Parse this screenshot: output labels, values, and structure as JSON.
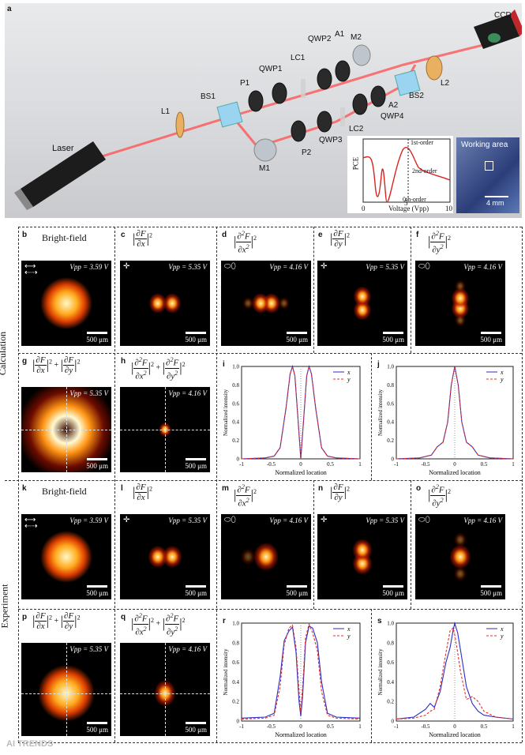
{
  "figure": {
    "section_labels": {
      "calculation": "Calculation",
      "experiment": "Experiment"
    },
    "setup": {
      "panel_label": "a",
      "components": [
        "Laser",
        "L1",
        "BS1",
        "P1",
        "QWP1",
        "LC1",
        "QWP2",
        "A1",
        "M2",
        "BS2",
        "L2",
        "CCD",
        "M1",
        "P2",
        "QWP3",
        "LC2",
        "QWP4",
        "A2"
      ],
      "inset_pce": {
        "ylabel": "PCE",
        "xlabel": "Voltage (Vpp)",
        "xticks": [
          "0",
          "5",
          "10"
        ],
        "labels": [
          "1st-order",
          "2nd-order",
          "0th-order"
        ]
      },
      "inset_photo": {
        "title": "Working area",
        "scale": "4 mm"
      }
    },
    "panels": [
      {
        "label": "b",
        "title": "Bright-field",
        "vpp": "3.59 V",
        "scale": "500 μm"
      },
      {
        "label": "c",
        "title": "|∂F/∂x|²",
        "vpp": "5.35 V",
        "scale": "500 μm"
      },
      {
        "label": "d",
        "title": "|∂²F/∂x²|²",
        "vpp": "4.16 V",
        "scale": "500 μm"
      },
      {
        "label": "e",
        "title": "|∂F/∂y|²",
        "vpp": "5.35 V",
        "scale": "500 μm"
      },
      {
        "label": "f",
        "title": "|∂²F/∂y²|²",
        "vpp": "4.16 V",
        "scale": "500 μm"
      },
      {
        "label": "g",
        "title": "|∂F/∂x|² + |∂F/∂y|²",
        "vpp": "5.35 V",
        "scale": "500 μm"
      },
      {
        "label": "h",
        "title": "|∂²F/∂x²|² + |∂²F/∂y²|²",
        "vpp": "4.16 V",
        "scale": "500 μm"
      },
      {
        "label": "i"
      },
      {
        "label": "j"
      },
      {
        "label": "k",
        "title": "Bright-field",
        "vpp": "3.59 V",
        "scale": "500 μm"
      },
      {
        "label": "l",
        "title": "|∂F/∂x|²",
        "vpp": "5.35 V",
        "scale": "500 μm"
      },
      {
        "label": "m",
        "title": "|∂²F/∂x²|²",
        "vpp": "4.16 V",
        "scale": "500 μm"
      },
      {
        "label": "n",
        "title": "|∂F/∂y|²",
        "vpp": "5.35 V",
        "scale": "500 μm"
      },
      {
        "label": "o",
        "title": "|∂²F/∂y²|²",
        "vpp": "4.16 V",
        "scale": "500 μm"
      },
      {
        "label": "p",
        "title": "|∂F/∂x|² + |∂F/∂y|²",
        "vpp": "5.35 V",
        "scale": "500 μm"
      },
      {
        "label": "q",
        "title": "|∂²F/∂x²|² + |∂²F/∂y²|²",
        "vpp": "4.16 V",
        "scale": "500 μm"
      },
      {
        "label": "r"
      },
      {
        "label": "s"
      }
    ],
    "vpp_prefix": "Vpp",
    "plots": {
      "xlabel": "Normalized location",
      "ylabel": "Normalized intensity",
      "xticks": [
        "-1",
        "-0.5",
        "0",
        "0.5",
        "1"
      ],
      "yticks": [
        "0",
        "0.2",
        "0.4",
        "0.6",
        "0.8",
        "1.0"
      ],
      "legend": [
        "x",
        "y"
      ],
      "colors": {
        "x": "#2b2bc8",
        "y": "#e0302a"
      }
    },
    "watermark": "AI TRENDS"
  },
  "chart_data": [
    {
      "type": "line",
      "panel": "i",
      "x": [
        -1,
        -0.6,
        -0.45,
        -0.35,
        -0.25,
        -0.18,
        -0.14,
        -0.1,
        -0.05,
        0,
        0.05,
        0.1,
        0.14,
        0.18,
        0.25,
        0.35,
        0.45,
        0.6,
        1
      ],
      "series": [
        {
          "name": "x",
          "values": [
            0,
            0.01,
            0.03,
            0.12,
            0.55,
            0.92,
            1.0,
            0.9,
            0.45,
            0.0,
            0.45,
            0.9,
            1.0,
            0.92,
            0.55,
            0.12,
            0.03,
            0.01,
            0
          ]
        },
        {
          "name": "y",
          "values": [
            0,
            0.01,
            0.03,
            0.12,
            0.55,
            0.92,
            1.0,
            0.9,
            0.45,
            0.0,
            0.45,
            0.9,
            1.0,
            0.92,
            0.55,
            0.12,
            0.03,
            0.01,
            0
          ]
        }
      ],
      "xlabel": "Normalized location",
      "ylabel": "Normalized intensity",
      "ylim": [
        0,
        1
      ]
    },
    {
      "type": "line",
      "panel": "j",
      "x": [
        -1,
        -0.6,
        -0.4,
        -0.3,
        -0.2,
        -0.12,
        -0.06,
        0,
        0.06,
        0.12,
        0.2,
        0.3,
        0.4,
        0.6,
        1
      ],
      "series": [
        {
          "name": "x",
          "values": [
            0,
            0.01,
            0.04,
            0.13,
            0.18,
            0.4,
            0.8,
            1.0,
            0.8,
            0.4,
            0.18,
            0.13,
            0.04,
            0.01,
            0
          ]
        },
        {
          "name": "y",
          "values": [
            0,
            0.01,
            0.04,
            0.13,
            0.18,
            0.4,
            0.8,
            1.0,
            0.8,
            0.4,
            0.18,
            0.13,
            0.04,
            0.01,
            0
          ]
        }
      ],
      "xlabel": "Normalized location",
      "ylabel": "Normalized intensity",
      "ylim": [
        0,
        1
      ]
    },
    {
      "type": "line",
      "panel": "r",
      "x": [
        -1,
        -0.6,
        -0.45,
        -0.35,
        -0.28,
        -0.2,
        -0.14,
        -0.08,
        -0.03,
        0,
        0.03,
        0.08,
        0.14,
        0.2,
        0.28,
        0.35,
        0.45,
        0.6,
        1
      ],
      "series": [
        {
          "name": "x",
          "values": [
            0.03,
            0.04,
            0.08,
            0.45,
            0.82,
            0.92,
            0.96,
            0.7,
            0.2,
            0.05,
            0.25,
            0.8,
            0.97,
            0.95,
            0.8,
            0.4,
            0.08,
            0.04,
            0.03
          ]
        },
        {
          "name": "y",
          "values": [
            0.02,
            0.03,
            0.06,
            0.35,
            0.78,
            0.95,
            0.98,
            0.75,
            0.3,
            0.08,
            0.35,
            0.85,
            0.99,
            0.9,
            0.72,
            0.3,
            0.06,
            0.03,
            0.02
          ]
        }
      ],
      "xlabel": "Normalized location",
      "ylabel": "Normalized intensity",
      "ylim": [
        0,
        1
      ]
    },
    {
      "type": "line",
      "panel": "s",
      "x": [
        -1,
        -0.7,
        -0.5,
        -0.42,
        -0.35,
        -0.25,
        -0.15,
        -0.08,
        -0.03,
        0,
        0.05,
        0.1,
        0.2,
        0.3,
        0.4,
        0.5,
        0.7,
        1
      ],
      "series": [
        {
          "name": "x",
          "values": [
            0.02,
            0.04,
            0.12,
            0.18,
            0.14,
            0.3,
            0.6,
            0.75,
            0.92,
            1.0,
            0.9,
            0.72,
            0.35,
            0.18,
            0.1,
            0.06,
            0.04,
            0.02
          ]
        },
        {
          "name": "y",
          "values": [
            0.02,
            0.03,
            0.06,
            0.1,
            0.12,
            0.35,
            0.7,
            0.92,
            0.95,
            0.88,
            0.7,
            0.5,
            0.22,
            0.25,
            0.2,
            0.1,
            0.04,
            0.02
          ]
        }
      ],
      "xlabel": "Normalized location",
      "ylabel": "Normalized intensity",
      "ylim": [
        0,
        1
      ]
    }
  ]
}
